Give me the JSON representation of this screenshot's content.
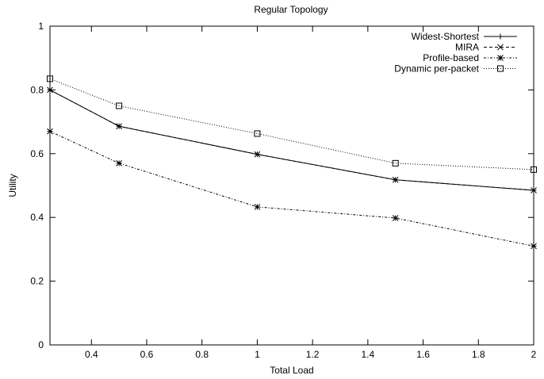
{
  "chart_data": {
    "type": "line",
    "title": "Regular Topology",
    "xlabel": "Total Load",
    "ylabel": "Utility",
    "xlim": [
      0.25,
      2
    ],
    "ylim": [
      0,
      1
    ],
    "x_ticks": [
      0.4,
      0.6,
      0.8,
      1,
      1.2,
      1.4,
      1.6,
      1.8,
      2
    ],
    "x_tick_labels": [
      "0.4",
      "0.6",
      "0.8",
      "1",
      "1.2",
      "1.4",
      "1.6",
      "1.8",
      "2"
    ],
    "y_ticks": [
      0,
      0.2,
      0.4,
      0.6,
      0.8,
      1
    ],
    "y_tick_labels": [
      "0",
      "0.2",
      "0.4",
      "0.6",
      "0.8",
      "1"
    ],
    "grid": false,
    "legend_position": "top-right",
    "x": [
      0.25,
      0.5,
      1,
      1.5,
      2
    ],
    "series": [
      {
        "name": "Widest-Shortest",
        "values": [
          0.8,
          0.686,
          0.598,
          0.518,
          0.485
        ],
        "marker": "plus",
        "dash": "solid"
      },
      {
        "name": "MIRA",
        "values": [
          0.8,
          0.686,
          0.598,
          0.518,
          0.485
        ],
        "marker": "cross",
        "dash": "dashed"
      },
      {
        "name": "Profile-based",
        "values": [
          0.67,
          0.57,
          0.433,
          0.398,
          0.31
        ],
        "marker": "star",
        "dash": "dashdot"
      },
      {
        "name": "Dynamic per-packet",
        "values": [
          0.835,
          0.75,
          0.663,
          0.57,
          0.55
        ],
        "marker": "square",
        "dash": "dotted"
      }
    ]
  }
}
